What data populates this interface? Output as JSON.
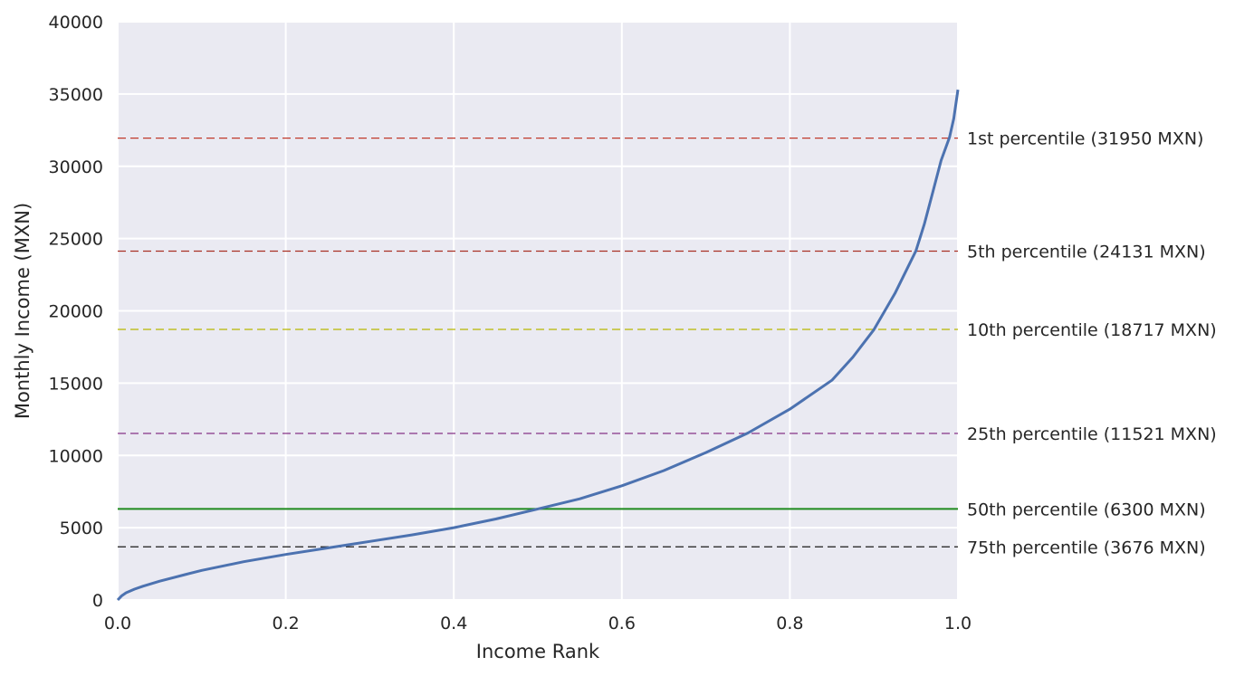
{
  "chart_data": {
    "type": "line",
    "title": "",
    "xlabel": "Income Rank",
    "ylabel": "Monthly Income (MXN)",
    "xlim": [
      0.0,
      1.0
    ],
    "ylim": [
      0,
      40000
    ],
    "grid": true,
    "x_ticks": [
      "0.0",
      "0.2",
      "0.4",
      "0.6",
      "0.8",
      "1.0"
    ],
    "y_ticks": [
      "0",
      "5000",
      "10000",
      "15000",
      "20000",
      "25000",
      "30000",
      "35000",
      "40000"
    ],
    "series": [
      {
        "color": "#4c72b0",
        "points": [
          [
            0.0,
            0
          ],
          [
            0.005,
            300
          ],
          [
            0.01,
            500
          ],
          [
            0.02,
            750
          ],
          [
            0.03,
            950
          ],
          [
            0.05,
            1300
          ],
          [
            0.08,
            1750
          ],
          [
            0.1,
            2050
          ],
          [
            0.15,
            2650
          ],
          [
            0.2,
            3150
          ],
          [
            0.25,
            3600
          ],
          [
            0.3,
            4050
          ],
          [
            0.35,
            4500
          ],
          [
            0.4,
            5000
          ],
          [
            0.45,
            5600
          ],
          [
            0.5,
            6300
          ],
          [
            0.55,
            7000
          ],
          [
            0.6,
            7900
          ],
          [
            0.65,
            8950
          ],
          [
            0.7,
            10200
          ],
          [
            0.75,
            11550
          ],
          [
            0.8,
            13200
          ],
          [
            0.85,
            15200
          ],
          [
            0.875,
            16800
          ],
          [
            0.9,
            18700
          ],
          [
            0.925,
            21200
          ],
          [
            0.95,
            24150
          ],
          [
            0.96,
            26000
          ],
          [
            0.97,
            28200
          ],
          [
            0.98,
            30400
          ],
          [
            0.99,
            32000
          ],
          [
            0.995,
            33300
          ],
          [
            1.0,
            35300
          ]
        ]
      }
    ],
    "reference_lines": [
      {
        "value": 31950,
        "label": "1st percentile (31950 MXN)",
        "color": "#c0392b",
        "dashed": true
      },
      {
        "value": 24131,
        "label": "5th percentile (24131 MXN)",
        "color": "#a93226",
        "dashed": true
      },
      {
        "value": 18717,
        "label": "10th percentile (18717 MXN)",
        "color": "#b8b800",
        "dashed": true
      },
      {
        "value": 11521,
        "label": "25th percentile (11521 MXN)",
        "color": "#7b1f7b",
        "dashed": true
      },
      {
        "value": 6300,
        "label": "50th percentile (6300 MXN)",
        "color": "#1e8a1e",
        "dashed": false
      },
      {
        "value": 3676,
        "label": "75th percentile (3676 MXN)",
        "color": "#1a1a1a",
        "dashed": true
      }
    ]
  }
}
